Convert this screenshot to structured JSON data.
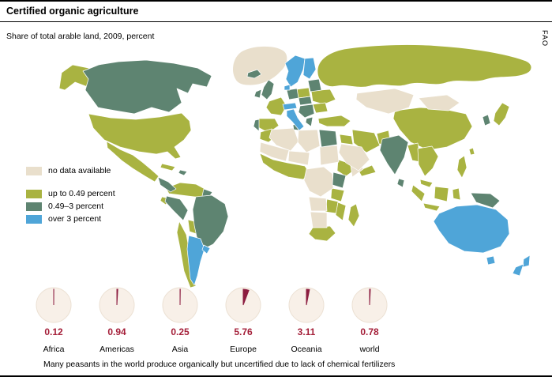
{
  "header": {
    "title": "Certified organic agriculture",
    "subtitle": "Share of total arable land, 2009, percent",
    "source": "FAO"
  },
  "legend": {
    "items": [
      {
        "key": "nodata",
        "label": "no data available",
        "color": "#e9dfcc"
      },
      {
        "key": "low",
        "label": "up to 0.49 percent",
        "color": "#a9b341"
      },
      {
        "key": "mid",
        "label": "0.49–3 percent",
        "color": "#5e8471"
      },
      {
        "key": "high",
        "label": "over 3 percent",
        "color": "#4fa5d8"
      }
    ]
  },
  "chart_data": [
    {
      "type": "heatmap",
      "subtype": "world-choropleth",
      "title": "Certified organic agriculture",
      "subtitle": "Share of total arable land, 2009, percent",
      "classes": [
        "no data available",
        "up to 0.49 percent",
        "0.49–3 percent",
        "over 3 percent"
      ],
      "colors": [
        "#e9dfcc",
        "#a9b341",
        "#5e8471",
        "#4fa5d8"
      ],
      "legend_position": "middle-left"
    },
    {
      "type": "pie",
      "categories": [
        "Africa",
        "Americas",
        "Asia",
        "Europe",
        "Oceania",
        "world"
      ],
      "values": [
        0.12,
        0.94,
        0.25,
        5.76,
        3.11,
        0.78
      ],
      "unit": "percent of total arable land",
      "max": 100,
      "wedge_color": "#8c1d40",
      "value_color": "#a41e38",
      "pie_bg": "#f8f0e8"
    }
  ],
  "footer": {
    "caption": "Many peasants in the world produce organically but uncertified due to lack of chemical fertilizers"
  }
}
